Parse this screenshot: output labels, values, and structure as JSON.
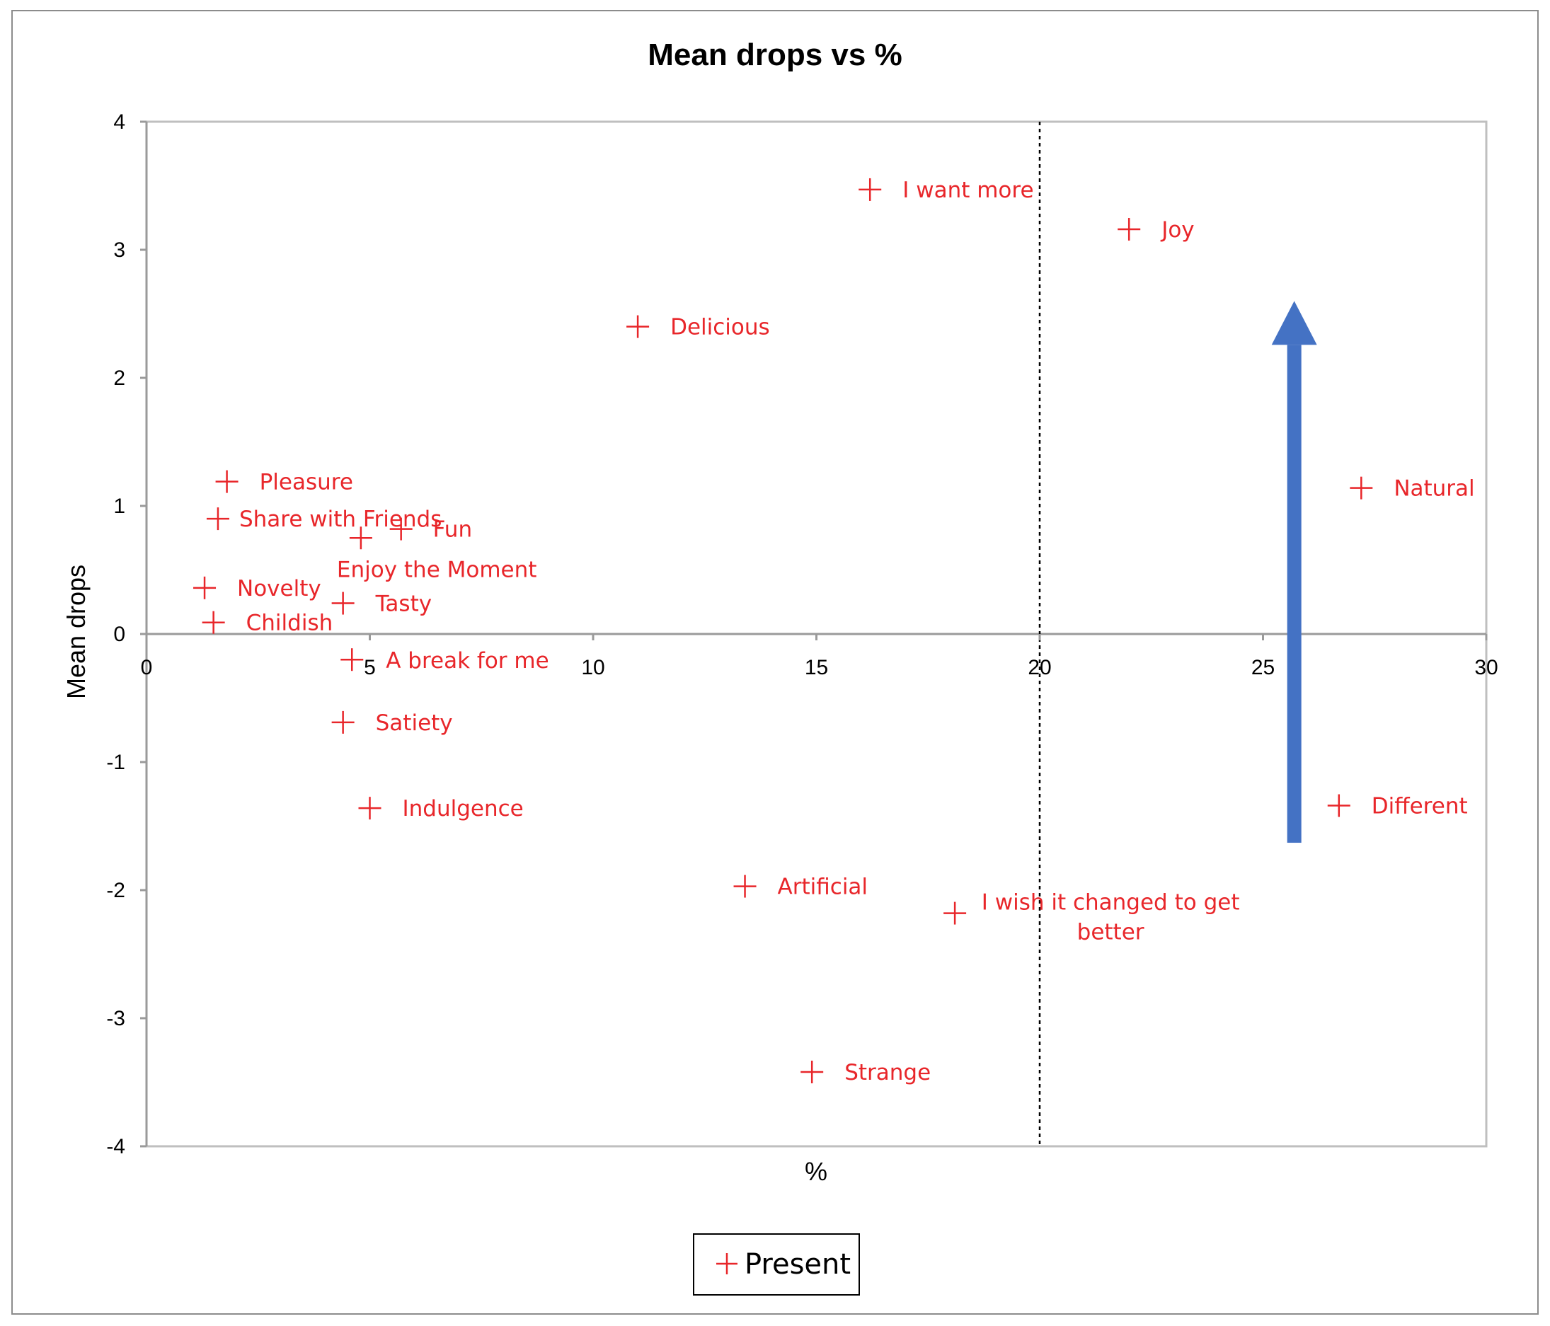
{
  "chart_data": {
    "type": "scatter",
    "title": "Mean drops vs %",
    "xlabel": "%",
    "ylabel": "Mean drops",
    "xlim": [
      0,
      30
    ],
    "ylim": [
      -4,
      4
    ],
    "xticks": [
      "0",
      "5",
      "10",
      "15",
      "20",
      "25",
      "30"
    ],
    "yticks": [
      "4",
      "3",
      "2",
      "1",
      "0",
      "-1",
      "-2",
      "-3",
      "-4"
    ],
    "reference_line_x": 20,
    "legend": {
      "label": "Present",
      "placement": "bottom-center"
    },
    "arrow": {
      "direction": "up",
      "x": 25.7,
      "y_start": -1.63,
      "y_end": 2.6,
      "color": "#4472c4"
    },
    "series": [
      {
        "name": "Present",
        "color": "#e8262a",
        "marker": "plus",
        "points": [
          {
            "label": "I want more",
            "x": 16.2,
            "y": 3.47
          },
          {
            "label": "Joy",
            "x": 22.0,
            "y": 3.16
          },
          {
            "label": "Delicious",
            "x": 11.0,
            "y": 2.4
          },
          {
            "label": "Pleasure",
            "x": 1.8,
            "y": 1.19
          },
          {
            "label": "Share with Friends",
            "x": 1.6,
            "y": 0.9
          },
          {
            "label": "Fun",
            "x": 5.7,
            "y": 0.82
          },
          {
            "label": "Enjoy the Moment",
            "x": 4.8,
            "y": 0.75
          },
          {
            "label": "Novelty",
            "x": 1.3,
            "y": 0.36
          },
          {
            "label": "Tasty",
            "x": 4.4,
            "y": 0.24
          },
          {
            "label": "Childish",
            "x": 1.5,
            "y": 0.09
          },
          {
            "label": "A break for me",
            "x": 4.6,
            "y": -0.2
          },
          {
            "label": "Satiety",
            "x": 4.4,
            "y": -0.69
          },
          {
            "label": "Indulgence",
            "x": 5.0,
            "y": -1.36
          },
          {
            "label": "Natural",
            "x": 27.2,
            "y": 1.14
          },
          {
            "label": "Different",
            "x": 26.7,
            "y": -1.34
          },
          {
            "label": "Artificial",
            "x": 13.4,
            "y": -1.97
          },
          {
            "label": "I wish it changed to get better",
            "x": 18.1,
            "y": -2.18
          },
          {
            "label": "Strange",
            "x": 14.9,
            "y": -3.42
          }
        ]
      }
    ]
  }
}
